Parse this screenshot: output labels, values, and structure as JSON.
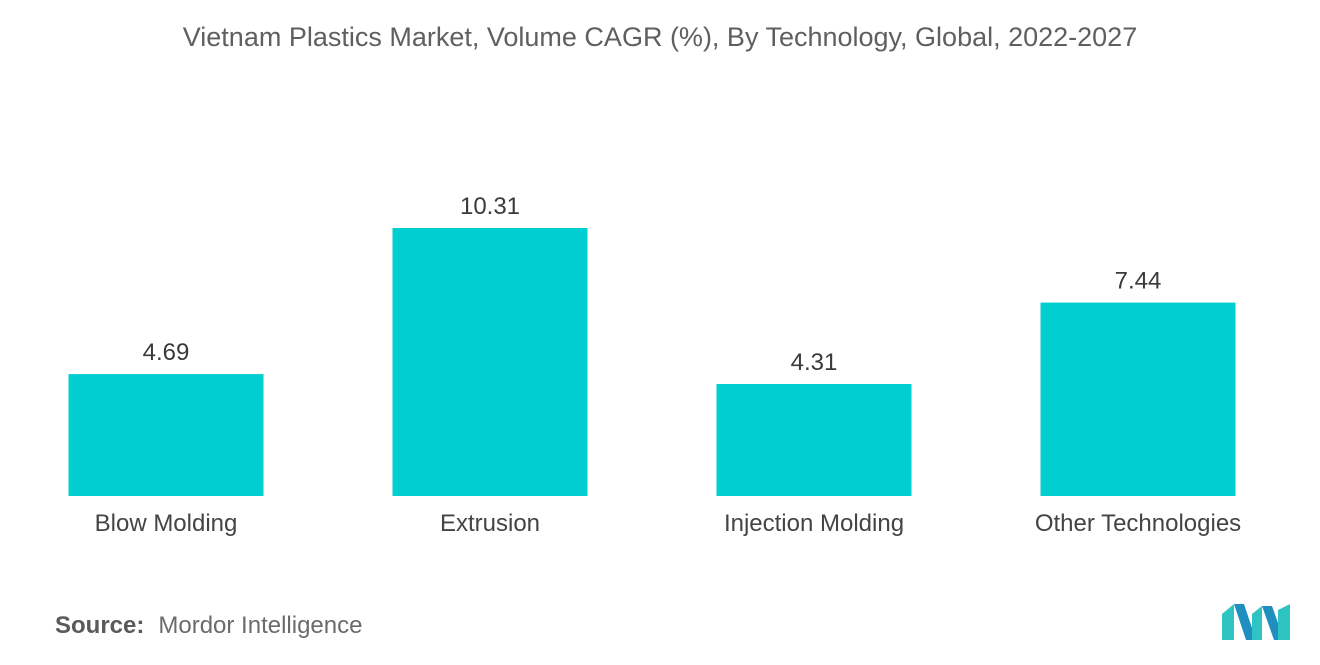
{
  "chart_data": {
    "type": "bar",
    "title": "Vietnam Plastics Market, Volume CAGR (%), By Technology, Global, 2022-2027",
    "categories": [
      "Blow Molding",
      "Extrusion",
      "Injection Molding",
      "Other Technologies"
    ],
    "values": [
      4.69,
      10.31,
      4.31,
      7.44
    ],
    "value_labels": [
      "4.69",
      "10.31",
      "4.31",
      "7.44"
    ],
    "xlabel": "",
    "ylabel": "",
    "ylim": [
      0,
      10.31
    ],
    "grid": false,
    "legend": "none",
    "bar_color": "#00CED1"
  },
  "footer": {
    "source_label": "Source:",
    "source_value": "Mordor Intelligence"
  },
  "logo": {
    "name": "mordor-intelligence-logo",
    "color_dark": "#1f8fbf",
    "color_light": "#2ec4c4"
  }
}
